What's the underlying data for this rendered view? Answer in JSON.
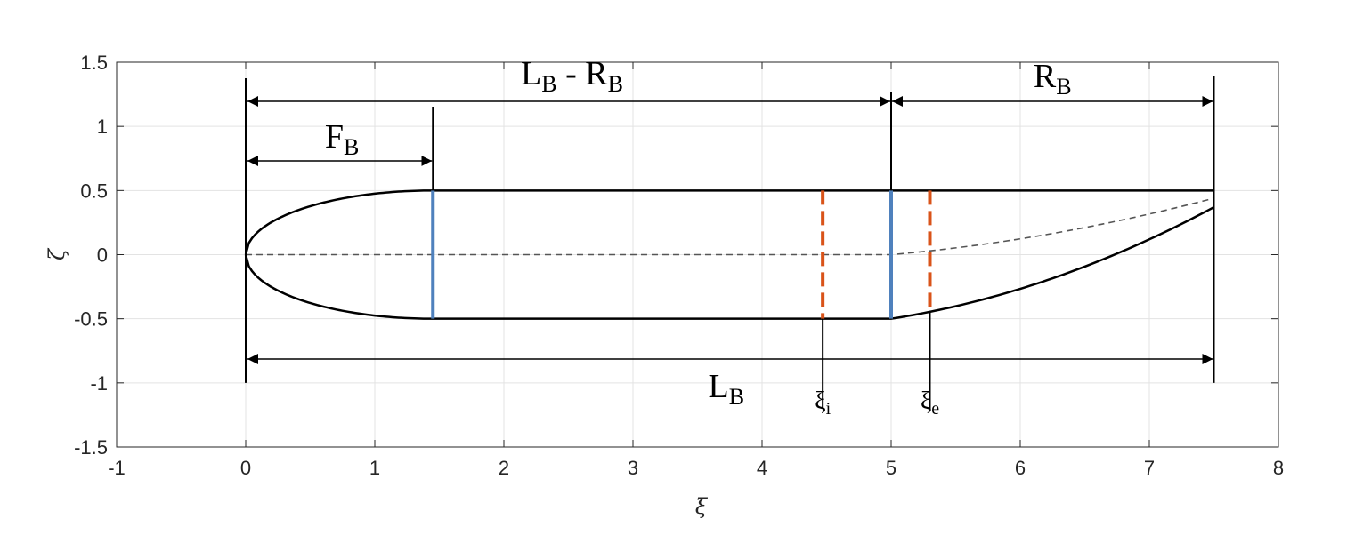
{
  "chart_data": {
    "type": "line",
    "xlabel": "ξ",
    "ylabel": "ζ",
    "xlim": [
      -1,
      8
    ],
    "ylim": [
      -1.5,
      1.5
    ],
    "xticks": [
      -1,
      0,
      1,
      2,
      3,
      4,
      5,
      6,
      7,
      8
    ],
    "yticks": [
      -1.5,
      -1,
      -0.5,
      0,
      0.5,
      1,
      1.5
    ],
    "xtick_labels": [
      "-1",
      "0",
      "1",
      "2",
      "3",
      "4",
      "5",
      "6",
      "7",
      "8"
    ],
    "ytick_labels": [
      "-1.5",
      "-1",
      "-0.5",
      "0",
      "0.5",
      "1",
      "1.5"
    ],
    "grid": true,
    "colors": {
      "body": "#000000",
      "camber": "#555555",
      "section_blue": "#4f81bd",
      "section_orange": "#d95319",
      "grid": "#e3e3e3"
    },
    "geometry": {
      "L_B": 7.5,
      "F_B": 1.45,
      "R_B": 2.5,
      "nose_end": 1.45,
      "tail_start": 5.0,
      "xi_i": 4.47,
      "xi_e": 5.3,
      "radius": 0.5,
      "tail_end_upper": 0.5,
      "tail_end_lower": 0.37,
      "tail_end_camber": 0.44
    },
    "series": [
      {
        "role": "upper-surface",
        "x": [
          0,
          0.1,
          0.3,
          0.6,
          1.0,
          1.45,
          5.0,
          7.5
        ],
        "y": [
          0,
          0.22,
          0.33,
          0.42,
          0.48,
          0.5,
          0.5,
          0.5
        ]
      },
      {
        "role": "lower-surface",
        "x": [
          0,
          0.1,
          0.3,
          0.6,
          1.0,
          1.45,
          5.0,
          5.3,
          6.0,
          7.0,
          7.5
        ],
        "y": [
          0,
          -0.22,
          -0.33,
          -0.42,
          -0.48,
          -0.5,
          -0.5,
          -0.43,
          -0.29,
          -0.05,
          0.37
        ]
      },
      {
        "role": "camber-line",
        "x": [
          0,
          5.0,
          5.3,
          6.0,
          7.0,
          7.5
        ],
        "y": [
          0,
          0,
          0.03,
          0.11,
          0.28,
          0.44
        ]
      }
    ],
    "annotations": {
      "lb_minus_rb": {
        "main": "L",
        "sub1": "B",
        "mid": " - R",
        "sub2": "B"
      },
      "rb": {
        "main": "R",
        "sub": "B"
      },
      "fb": {
        "main": "F",
        "sub": "B"
      },
      "lb": {
        "main": "L",
        "sub": "B"
      },
      "xi_i": {
        "main": "ξ",
        "sub": "i"
      },
      "xi_e": {
        "main": "ξ",
        "sub": "e"
      }
    }
  }
}
